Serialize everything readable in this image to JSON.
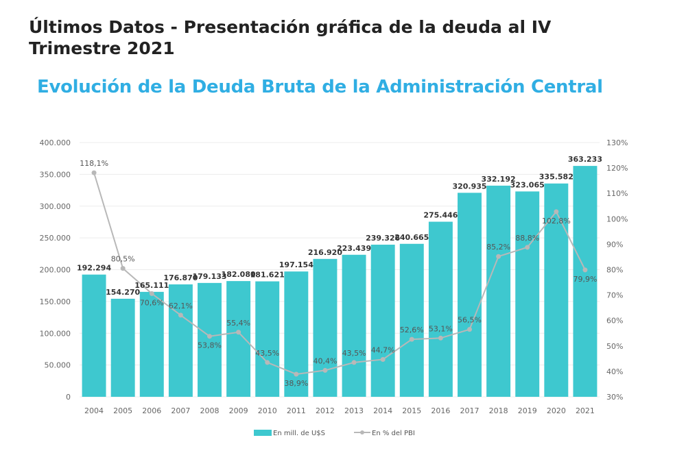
{
  "page_title": "Últimos Datos - Presentación gráfica de la deuda al IV Trimestre 2021",
  "colors": {
    "bars": "#3ec8cf",
    "line": "#b8b8b8",
    "chart_title": "#30aee3"
  },
  "chart_data": {
    "type": "bar+line",
    "title": "Evolución de la Deuda Bruta de la Administración Central",
    "categories": [
      "2004",
      "2005",
      "2006",
      "2007",
      "2008",
      "2009",
      "2010",
      "2011",
      "2012",
      "2013",
      "2014",
      "2015",
      "2016",
      "2017",
      "2018",
      "2019",
      "2020",
      "2021"
    ],
    "series": [
      {
        "name": "En mill. de U$S",
        "type": "bar",
        "axis": "left",
        "values": [
          192294,
          154270,
          165111,
          176870,
          179133,
          182080,
          181621,
          197154,
          216920,
          223439,
          239326,
          240665,
          275446,
          320935,
          332192,
          323065,
          335582,
          363233
        ],
        "labels": [
          "192.294",
          "154.270",
          "165.111",
          "176.870",
          "179.133",
          "182.080",
          "181.621",
          "197.154",
          "216.920",
          "223.439",
          "239.326",
          "240.665",
          "275.446",
          "320.935",
          "332.192",
          "323.065",
          "335.582",
          "363.233"
        ]
      },
      {
        "name": "En % del PBI",
        "type": "line",
        "axis": "right",
        "values": [
          118.1,
          80.5,
          70.6,
          62.1,
          53.8,
          55.4,
          43.5,
          38.9,
          40.4,
          43.5,
          44.7,
          52.6,
          53.1,
          56.5,
          85.2,
          88.8,
          102.8,
          79.9
        ],
        "labels": [
          "118,1%",
          "80,5%",
          "70,6%",
          "62,1%",
          "53,8%",
          "55,4%",
          "43,5%",
          "38,9%",
          "40,4%",
          "43,5%",
          "44,7%",
          "52,6%",
          "53,1%",
          "56,5%",
          "85,2%",
          "88,8%",
          "102,8%",
          "79,9%"
        ]
      }
    ],
    "y_left": {
      "range": [
        0,
        400000
      ],
      "ticks": [
        "0",
        "50.000",
        "100.000",
        "150.000",
        "200.000",
        "250.000",
        "300.000",
        "350.000",
        "400.000"
      ]
    },
    "y_right": {
      "range": [
        30,
        130
      ],
      "ticks": [
        "30%",
        "40%",
        "50%",
        "60%",
        "70%",
        "80%",
        "90%",
        "100%",
        "110%",
        "120%",
        "130%"
      ]
    },
    "grid": true,
    "legend": "bottom"
  }
}
